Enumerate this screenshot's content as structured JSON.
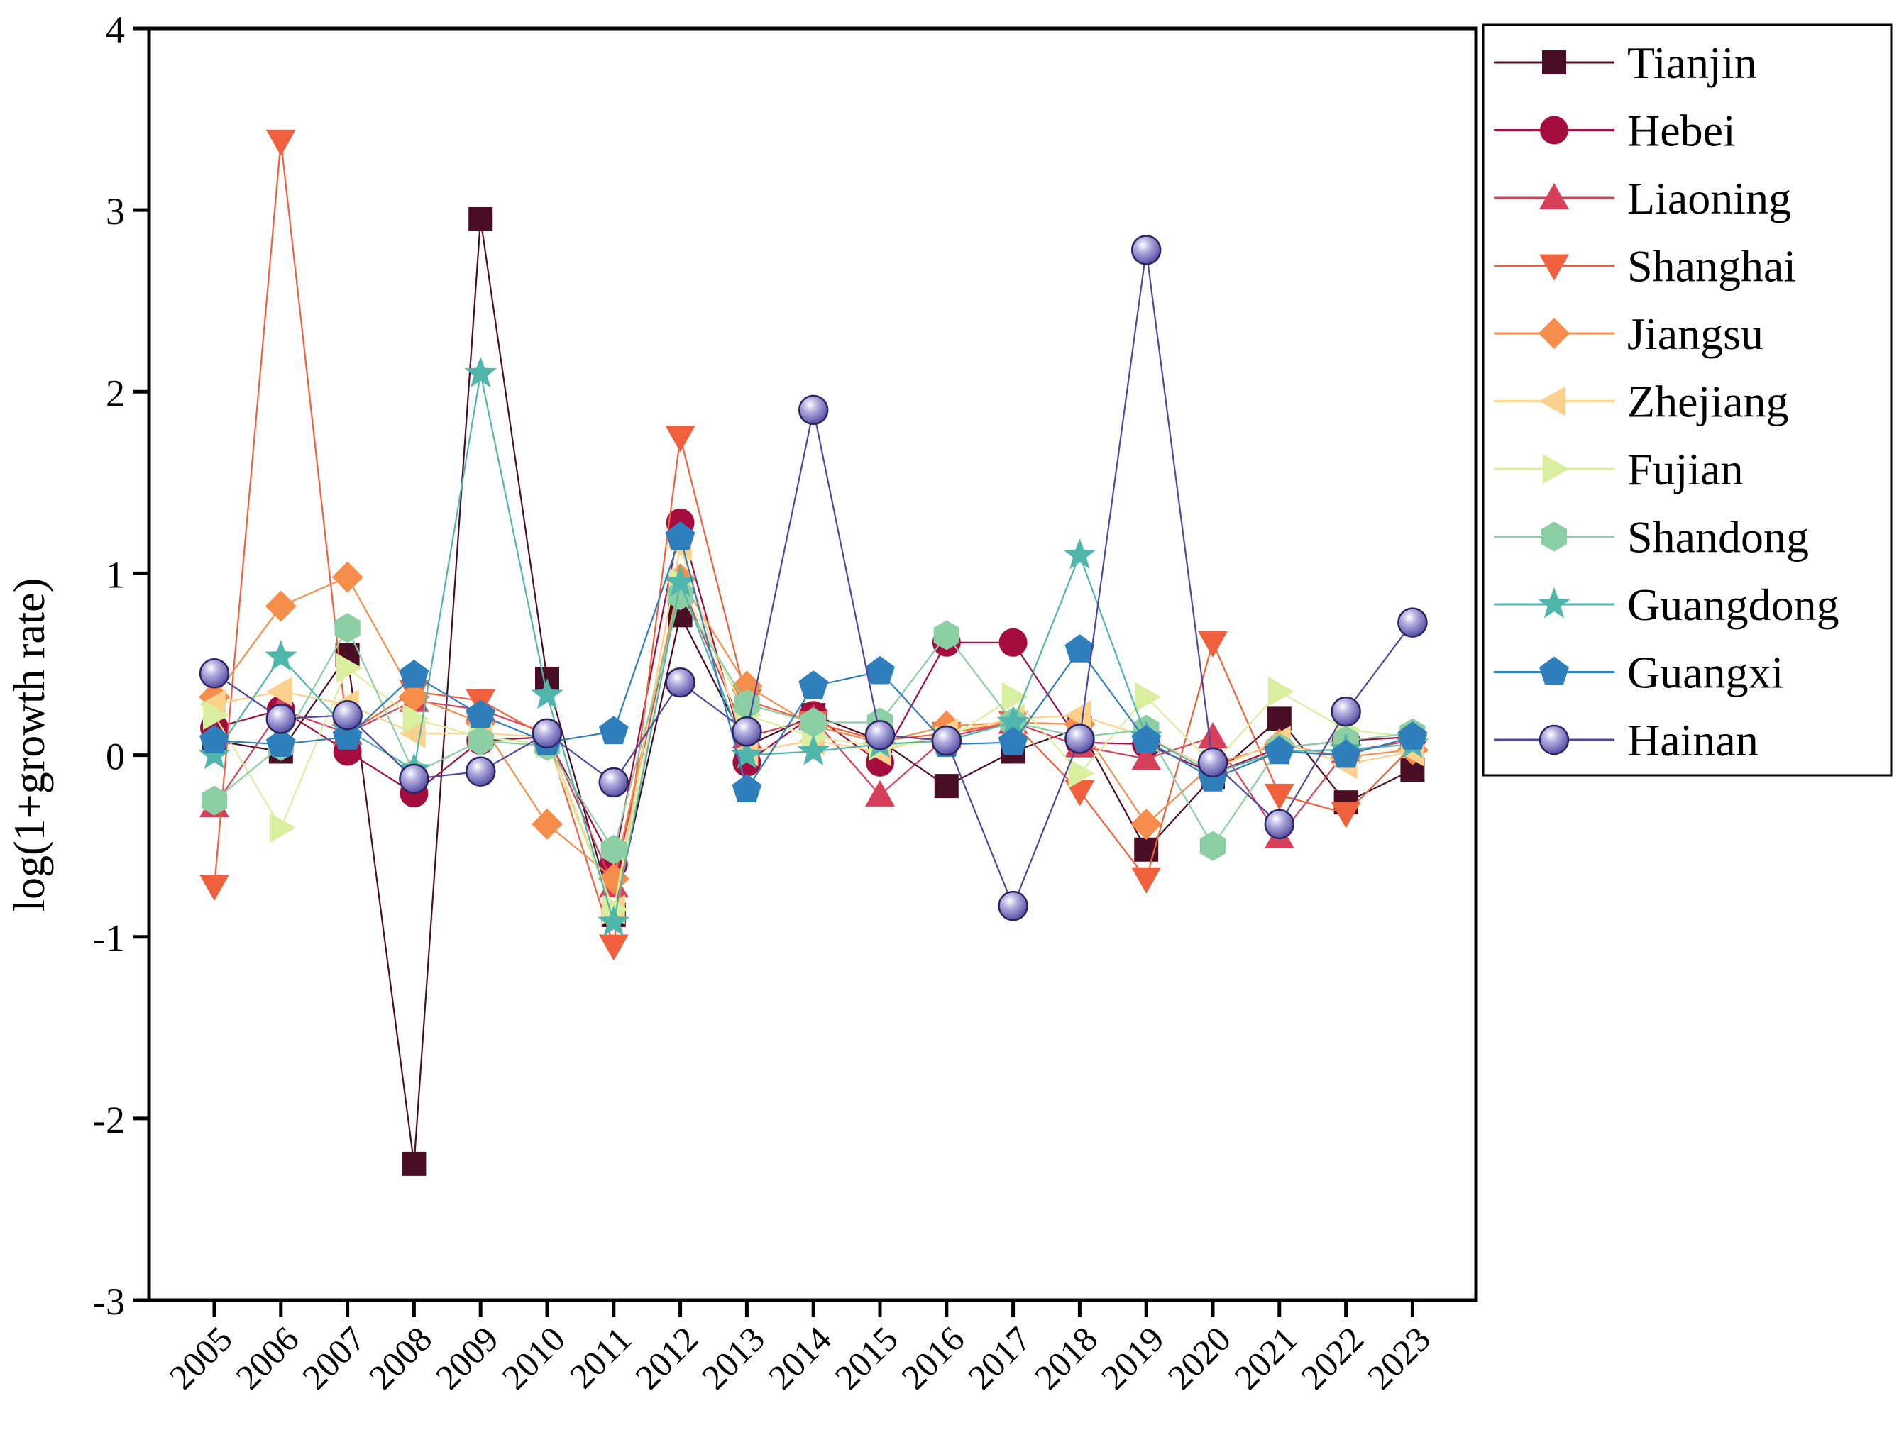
{
  "chart_data": {
    "type": "line",
    "title": "",
    "xlabel": "",
    "ylabel": "log(1+growth rate)",
    "ylim": [
      -3,
      4
    ],
    "yticks": [
      -3,
      -2,
      -1,
      0,
      1,
      2,
      3,
      4
    ],
    "ytick_labels": [
      "-3",
      "-2",
      "-1",
      "0",
      "1",
      "2",
      "3",
      "4"
    ],
    "categories": [
      "2005",
      "2006",
      "2007",
      "2008",
      "2009",
      "2010",
      "2011",
      "2012",
      "2013",
      "2014",
      "2015",
      "2016",
      "2017",
      "2018",
      "2019",
      "2020",
      "2021",
      "2022",
      "2023"
    ],
    "grid": false,
    "legend_position": "right",
    "series": [
      {
        "name": "Tianjin",
        "color": "#4a0f24",
        "marker": "square",
        "values": [
          0.08,
          0.02,
          0.55,
          -2.25,
          2.95,
          0.42,
          -0.88,
          0.77,
          0.05,
          0.22,
          0.08,
          -0.17,
          0.02,
          0.15,
          -0.52,
          -0.12,
          0.2,
          -0.26,
          -0.08
        ]
      },
      {
        "name": "Hebei",
        "color": "#a50d3f",
        "marker": "circle",
        "values": [
          0.15,
          0.25,
          0.02,
          -0.21,
          0.08,
          0.1,
          -0.6,
          1.28,
          -0.04,
          0.22,
          -0.04,
          0.62,
          0.62,
          0.07,
          0.06,
          -0.1,
          0.04,
          0.08,
          0.1
        ]
      },
      {
        "name": "Liaoning",
        "color": "#d6405a",
        "marker": "triangle-up",
        "values": [
          -0.28,
          0.25,
          0.12,
          0.3,
          0.25,
          0.12,
          -0.72,
          0.95,
          0.1,
          0.2,
          -0.22,
          0.1,
          0.18,
          0.05,
          -0.02,
          0.1,
          -0.45,
          0.02,
          0.08
        ]
      },
      {
        "name": "Shanghai",
        "color": "#f0603c",
        "marker": "triangle-down",
        "values": [
          -0.72,
          3.38,
          0.12,
          0.35,
          0.3,
          0.1,
          -1.05,
          1.75,
          0.3,
          0.18,
          0.08,
          0.12,
          0.18,
          -0.2,
          -0.68,
          0.62,
          -0.22,
          -0.32,
          0.05
        ]
      },
      {
        "name": "Jiangsu",
        "color": "#f78d4a",
        "marker": "diamond",
        "values": [
          0.32,
          0.82,
          0.98,
          0.32,
          0.18,
          -0.38,
          -0.68,
          0.97,
          0.38,
          0.16,
          0.07,
          0.16,
          0.18,
          0.17,
          -0.38,
          -0.05,
          0.06,
          -0.01,
          0.03
        ]
      },
      {
        "name": "Zhejiang",
        "color": "#fdd08c",
        "marker": "triangle-left",
        "values": [
          0.28,
          0.35,
          0.28,
          0.12,
          0.12,
          0.1,
          -0.85,
          1.15,
          0.02,
          0.08,
          0.02,
          0.12,
          0.2,
          0.22,
          0.1,
          -0.08,
          0.08,
          -0.05,
          0.02
        ]
      },
      {
        "name": "Fujian",
        "color": "#d9ee9e",
        "marker": "triangle-right",
        "values": [
          0.22,
          -0.4,
          0.48,
          0.2,
          0.1,
          0.06,
          -0.85,
          0.95,
          0.22,
          0.1,
          0.05,
          0.08,
          0.32,
          -0.1,
          0.32,
          -0.05,
          0.35,
          0.14,
          0.1
        ]
      },
      {
        "name": "Shandong",
        "color": "#8ccfa4",
        "marker": "hexagon",
        "values": [
          -0.25,
          0.05,
          0.7,
          -0.1,
          0.08,
          0.05,
          -0.52,
          0.88,
          0.28,
          0.18,
          0.18,
          0.66,
          0.18,
          0.1,
          0.14,
          -0.5,
          0.04,
          0.08,
          0.12
        ]
      },
      {
        "name": "Guangdong",
        "color": "#50b6ac",
        "marker": "star",
        "values": [
          0.0,
          0.54,
          0.14,
          -0.08,
          2.1,
          0.33,
          -0.92,
          0.95,
          0.0,
          0.02,
          0.06,
          0.08,
          0.18,
          1.1,
          0.1,
          -0.1,
          0.02,
          0.03,
          0.06
        ]
      },
      {
        "name": "Guangxi",
        "color": "#2e7fbc",
        "marker": "pentagon",
        "values": [
          0.08,
          0.06,
          0.1,
          0.44,
          0.22,
          0.07,
          0.13,
          1.2,
          -0.19,
          0.38,
          0.46,
          0.06,
          0.07,
          0.58,
          0.08,
          -0.13,
          0.02,
          0.0,
          0.1
        ]
      },
      {
        "name": "Hainan",
        "color": "#4f47a0",
        "marker": "sphere",
        "values": [
          0.45,
          0.2,
          0.22,
          -0.13,
          -0.09,
          0.12,
          -0.15,
          0.4,
          0.13,
          1.9,
          0.11,
          0.08,
          -0.83,
          0.09,
          2.78,
          -0.04,
          -0.38,
          0.24,
          0.73
        ]
      }
    ]
  }
}
